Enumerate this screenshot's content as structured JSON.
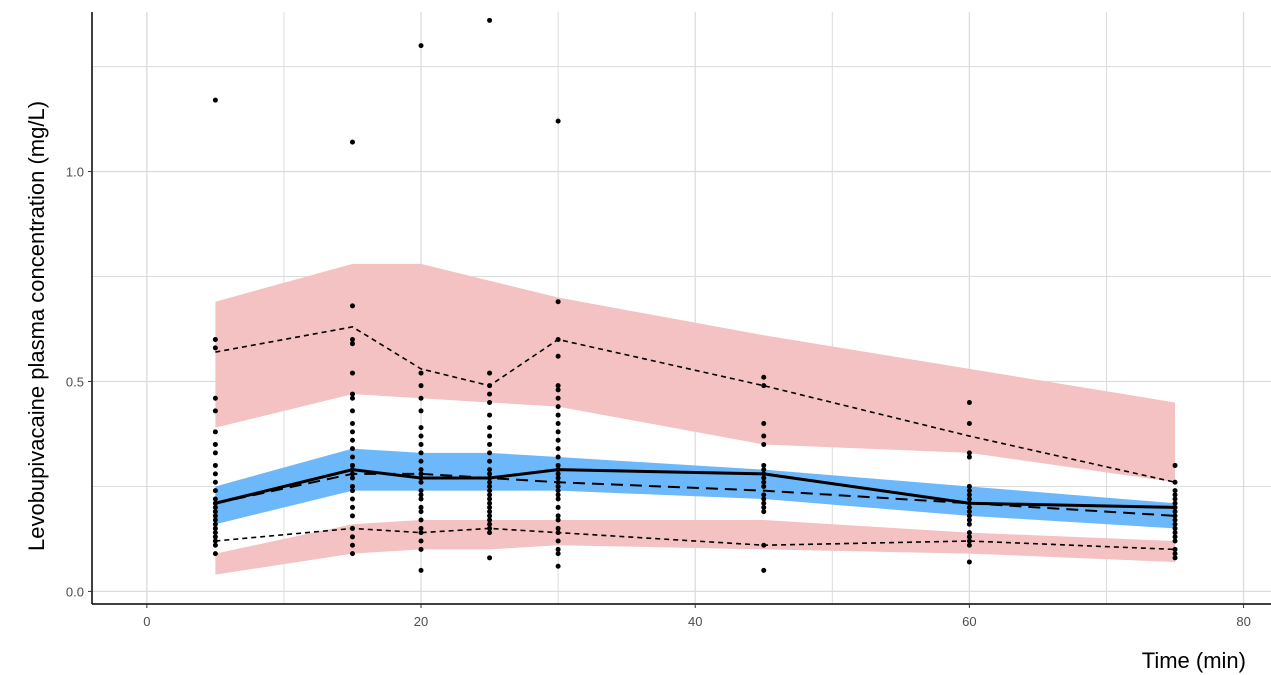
{
  "chart_data": {
    "type": "scatter",
    "title": "",
    "xlabel": "Time (min)",
    "ylabel": "Levobupivacaine plasma concentration (mg/L)",
    "xlim": [
      -4,
      82
    ],
    "ylim": [
      -0.03,
      1.38
    ],
    "x_ticks": [
      0,
      20,
      40,
      60,
      80
    ],
    "x_tick_labels": [
      "0",
      "20",
      "40",
      "60",
      "80"
    ],
    "y_ticks": [
      0.0,
      0.5,
      1.0
    ],
    "y_tick_labels": [
      "0.0",
      "0.5",
      "1.0"
    ],
    "grid": true,
    "colors": {
      "outer_band": "#f4c2c2",
      "median_band": "#64b4fa",
      "points": "#000000",
      "lines": "#000000",
      "grid": "#dcdcdc"
    },
    "bands": [
      {
        "kind": "upper-percentile-ci",
        "x": [
          5,
          15,
          20,
          25,
          30,
          45,
          60,
          75
        ],
        "lower": [
          0.39,
          0.47,
          0.46,
          0.45,
          0.44,
          0.35,
          0.33,
          0.26
        ],
        "upper": [
          0.69,
          0.78,
          0.78,
          0.74,
          0.7,
          0.61,
          0.53,
          0.45
        ]
      },
      {
        "kind": "median-ci",
        "x": [
          5,
          15,
          20,
          25,
          30,
          45,
          60,
          75
        ],
        "lower": [
          0.16,
          0.24,
          0.24,
          0.24,
          0.24,
          0.22,
          0.18,
          0.15
        ],
        "upper": [
          0.25,
          0.34,
          0.33,
          0.33,
          0.32,
          0.29,
          0.25,
          0.21
        ]
      },
      {
        "kind": "lower-percentile-ci",
        "x": [
          5,
          15,
          20,
          25,
          30,
          45,
          60,
          75
        ],
        "lower": [
          0.04,
          0.09,
          0.1,
          0.1,
          0.11,
          0.1,
          0.09,
          0.07
        ],
        "upper": [
          0.09,
          0.16,
          0.17,
          0.17,
          0.17,
          0.17,
          0.14,
          0.12
        ]
      }
    ],
    "lines": [
      {
        "kind": "observed-median",
        "style": "solid",
        "x": [
          5,
          15,
          20,
          25,
          30,
          45,
          60,
          75
        ],
        "y": [
          0.21,
          0.29,
          0.27,
          0.27,
          0.29,
          0.28,
          0.21,
          0.2
        ]
      },
      {
        "kind": "predicted-median",
        "style": "long-dash",
        "x": [
          5,
          15,
          20,
          25,
          30,
          45,
          60,
          75
        ],
        "y": [
          0.21,
          0.28,
          0.28,
          0.27,
          0.26,
          0.24,
          0.21,
          0.18
        ]
      },
      {
        "kind": "observed-upper-percentile",
        "style": "short-dash",
        "x": [
          5,
          15,
          20,
          25,
          30,
          45,
          60,
          75
        ],
        "y": [
          0.57,
          0.63,
          0.53,
          0.49,
          0.6,
          0.49,
          0.37,
          0.26
        ]
      },
      {
        "kind": "observed-lower-percentile",
        "style": "short-dash",
        "x": [
          5,
          15,
          20,
          25,
          30,
          45,
          60,
          75
        ],
        "y": [
          0.12,
          0.15,
          0.14,
          0.15,
          0.14,
          0.11,
          0.12,
          0.1
        ]
      }
    ],
    "points": [
      {
        "x": 5,
        "y": [
          1.17,
          0.6,
          0.58,
          0.46,
          0.43,
          0.38,
          0.35,
          0.33,
          0.3,
          0.28,
          0.26,
          0.24,
          0.22,
          0.21,
          0.2,
          0.19,
          0.18,
          0.17,
          0.16,
          0.15,
          0.14,
          0.13,
          0.12,
          0.11,
          0.09
        ]
      },
      {
        "x": 15,
        "y": [
          1.07,
          0.68,
          0.6,
          0.59,
          0.52,
          0.47,
          0.46,
          0.43,
          0.4,
          0.38,
          0.36,
          0.34,
          0.32,
          0.3,
          0.29,
          0.28,
          0.27,
          0.25,
          0.24,
          0.22,
          0.2,
          0.18,
          0.15,
          0.13,
          0.11,
          0.09
        ]
      },
      {
        "x": 20,
        "y": [
          1.3,
          0.52,
          0.49,
          0.46,
          0.43,
          0.39,
          0.37,
          0.35,
          0.33,
          0.31,
          0.29,
          0.28,
          0.27,
          0.26,
          0.24,
          0.23,
          0.22,
          0.2,
          0.19,
          0.17,
          0.15,
          0.14,
          0.12,
          0.1,
          0.05
        ]
      },
      {
        "x": 25,
        "y": [
          1.36,
          0.52,
          0.49,
          0.47,
          0.45,
          0.42,
          0.39,
          0.37,
          0.35,
          0.33,
          0.31,
          0.29,
          0.28,
          0.27,
          0.26,
          0.25,
          0.24,
          0.23,
          0.22,
          0.21,
          0.2,
          0.19,
          0.18,
          0.17,
          0.16,
          0.15,
          0.14,
          0.08
        ]
      },
      {
        "x": 30,
        "y": [
          1.12,
          0.69,
          0.6,
          0.56,
          0.49,
          0.48,
          0.46,
          0.44,
          0.42,
          0.4,
          0.38,
          0.36,
          0.34,
          0.32,
          0.3,
          0.29,
          0.28,
          0.27,
          0.26,
          0.25,
          0.24,
          0.23,
          0.22,
          0.2,
          0.18,
          0.17,
          0.15,
          0.14,
          0.12,
          0.1,
          0.09,
          0.06
        ]
      },
      {
        "x": 45,
        "y": [
          0.51,
          0.49,
          0.4,
          0.37,
          0.35,
          0.3,
          0.29,
          0.28,
          0.27,
          0.26,
          0.25,
          0.23,
          0.22,
          0.21,
          0.2,
          0.19,
          0.11,
          0.05
        ]
      },
      {
        "x": 60,
        "y": [
          0.45,
          0.4,
          0.33,
          0.32,
          0.25,
          0.24,
          0.23,
          0.22,
          0.21,
          0.2,
          0.19,
          0.18,
          0.17,
          0.16,
          0.14,
          0.13,
          0.12,
          0.11,
          0.07
        ]
      },
      {
        "x": 75,
        "y": [
          0.3,
          0.26,
          0.24,
          0.23,
          0.22,
          0.21,
          0.2,
          0.19,
          0.18,
          0.17,
          0.16,
          0.15,
          0.14,
          0.13,
          0.12,
          0.1,
          0.09,
          0.08
        ]
      }
    ]
  }
}
